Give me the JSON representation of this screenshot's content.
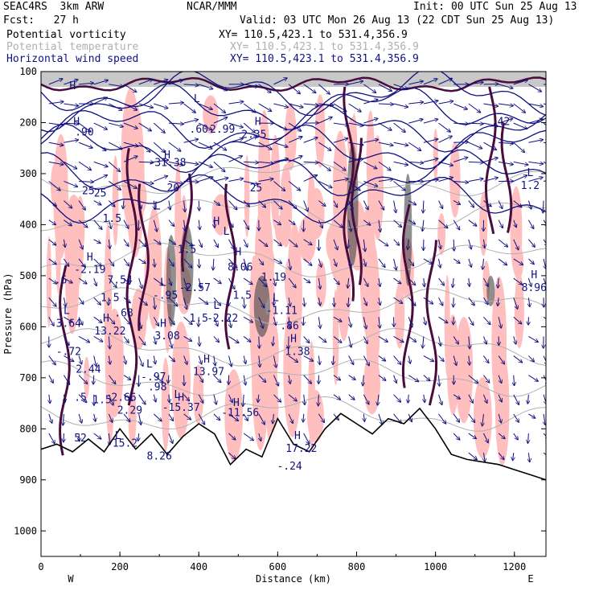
{
  "header": {
    "model": "SEAC4RS  3km ARW",
    "org": "NCAR/MMM",
    "init": "Init: 00 UTC Sun 25 Aug 13",
    "fcst": "Fcst:   27 h",
    "valid": "Valid: 03 UTC Mon 26 Aug 13 (22 CDT Sun 25 Aug 13)"
  },
  "legend": [
    {
      "name": "Potential vorticity",
      "xy": "XY= 110.5,423.1 to 531.4,356.9",
      "color": "#000000"
    },
    {
      "name": "Potential temperature",
      "xy": "XY= 110.5,423.1 to 531.4,356.9",
      "color": "#b0b0b0"
    },
    {
      "name": "Horizontal wind speed",
      "xy": "XY= 110.5,423.1 to 531.4,356.9",
      "color": "#101080"
    }
  ],
  "chart_data": {
    "type": "cross-section",
    "xlabel": "Distance (km)",
    "ylabel": "Pressure (hPa)",
    "xlim": [
      0,
      1280
    ],
    "ylim": [
      1050,
      100
    ],
    "xticks": [
      "0",
      "200",
      "400",
      "600",
      "800",
      "1000",
      "1200"
    ],
    "yticks": [
      "100",
      "200",
      "300",
      "400",
      "500",
      "600",
      "700",
      "800",
      "900",
      "1000"
    ],
    "left_end": "W",
    "right_end": "E",
    "colors": {
      "pv_light": "#ffbfbf",
      "pv_dark": "#4a0c3c",
      "wind": "#101080",
      "theta": "#b0b0b0",
      "terrain": "#000000"
    },
    "terrain": {
      "x": [
        0,
        40,
        80,
        120,
        160,
        200,
        240,
        280,
        320,
        360,
        400,
        440,
        480,
        520,
        560,
        600,
        640,
        680,
        720,
        760,
        800,
        840,
        880,
        920,
        960,
        1000,
        1040,
        1080,
        1120,
        1160,
        1200,
        1240,
        1280
      ],
      "p": [
        840,
        830,
        845,
        820,
        845,
        800,
        840,
        810,
        850,
        815,
        790,
        810,
        870,
        840,
        855,
        780,
        830,
        845,
        800,
        770,
        790,
        810,
        780,
        790,
        760,
        800,
        850,
        860,
        865,
        870,
        880,
        890,
        900
      ]
    },
    "labels": [
      {
        "t": "H",
        "x": 80,
        "p": 135,
        "c": "wind"
      },
      {
        "t": "H",
        "x": 90,
        "p": 205,
        "c": "wind"
      },
      {
        "t": "L",
        "x": 395,
        "p": 160,
        "c": "wind"
      },
      {
        "t": "H",
        "x": 550,
        "p": 205,
        "c": "wind"
      },
      {
        "t": "H",
        "x": 320,
        "p": 270,
        "c": "wind"
      },
      {
        "t": "25",
        "x": 150,
        "p": 345,
        "c": "wind"
      },
      {
        "t": "25",
        "x": 545,
        "p": 335,
        "c": "wind"
      },
      {
        "t": ".42",
        "x": 1165,
        "p": 205,
        "c": "wind"
      },
      {
        "t": "L",
        "x": 1240,
        "p": 305,
        "c": "wind"
      },
      {
        "t": "1.2",
        "x": 1240,
        "p": 330,
        "c": "wind"
      },
      {
        "t": ".90",
        "x": 110,
        "p": 225,
        "c": "wind"
      },
      {
        "t": "2.35",
        "x": 540,
        "p": 230,
        "c": "wind"
      },
      {
        "t": ".60",
        "x": 400,
        "p": 220,
        "c": "wind"
      },
      {
        "t": "2.99",
        "x": 460,
        "p": 220,
        "c": "wind"
      },
      {
        "t": "-31.38",
        "x": 320,
        "p": 285,
        "c": "wind"
      },
      {
        "t": "25",
        "x": 120,
        "p": 340,
        "c": "wind"
      },
      {
        "t": "20",
        "x": 335,
        "p": 335,
        "c": "wind"
      },
      {
        "t": "H",
        "x": 445,
        "p": 400,
        "c": "wind"
      },
      {
        "t": "H",
        "x": 1250,
        "p": 505,
        "c": "wind"
      },
      {
        "t": "8.96",
        "x": 1250,
        "p": 530,
        "c": "wind"
      },
      {
        "t": "H",
        "x": 124,
        "p": 470,
        "c": "wind"
      },
      {
        "t": "-2.19",
        "x": 124,
        "p": 495,
        "c": "wind"
      },
      {
        "t": "1.5",
        "x": 180,
        "p": 395,
        "c": "wind"
      },
      {
        "t": "L",
        "x": 295,
        "p": 370,
        "c": "wind"
      },
      {
        "t": "L",
        "x": 470,
        "p": 420,
        "c": "wind"
      },
      {
        "t": "1.5",
        "x": 370,
        "p": 455,
        "c": "wind"
      },
      {
        "t": "H",
        "x": 500,
        "p": 460,
        "c": "wind"
      },
      {
        "t": "8.06",
        "x": 505,
        "p": 490,
        "c": "wind"
      },
      {
        "t": "1.19",
        "x": 590,
        "p": 510,
        "c": "wind"
      },
      {
        "t": ".6",
        "x": 50,
        "p": 515,
        "c": "wind"
      },
      {
        "t": "7.54",
        "x": 200,
        "p": 515,
        "c": "wind"
      },
      {
        "t": "L",
        "x": 310,
        "p": 520,
        "c": "wind"
      },
      {
        "t": "-2.57",
        "x": 390,
        "p": 530,
        "c": "wind"
      },
      {
        "t": "L",
        "x": 595,
        "p": 550,
        "c": "wind"
      },
      {
        "t": "-1.11",
        "x": 610,
        "p": 575,
        "c": "wind"
      },
      {
        "t": "-.95",
        "x": 315,
        "p": 545,
        "c": "wind"
      },
      {
        "t": "1.5",
        "x": 510,
        "p": 545,
        "c": "wind"
      },
      {
        "t": "L",
        "x": 65,
        "p": 575,
        "c": "wind"
      },
      {
        "t": "3.64",
        "x": 70,
        "p": 600,
        "c": "wind"
      },
      {
        "t": "1.5",
        "x": 175,
        "p": 550,
        "c": "wind"
      },
      {
        "t": ".68",
        "x": 210,
        "p": 580,
        "c": "wind"
      },
      {
        "t": "H",
        "x": 165,
        "p": 590,
        "c": "wind"
      },
      {
        "t": "13.22",
        "x": 175,
        "p": 615,
        "c": "wind"
      },
      {
        "t": "H",
        "x": 310,
        "p": 600,
        "c": "wind"
      },
      {
        "t": "3.08",
        "x": 320,
        "p": 625,
        "c": "wind"
      },
      {
        "t": "1.5",
        "x": 400,
        "p": 590,
        "c": "wind"
      },
      {
        "t": "L",
        "x": 445,
        "p": 565,
        "c": "wind"
      },
      {
        "t": "-2.22",
        "x": 460,
        "p": 590,
        "c": "wind"
      },
      {
        "t": ".86",
        "x": 630,
        "p": 605,
        "c": "wind"
      },
      {
        "t": "H",
        "x": 640,
        "p": 630,
        "c": "wind"
      },
      {
        "t": "1.38",
        "x": 650,
        "p": 655,
        "c": "wind"
      },
      {
        "t": "-.72",
        "x": 70,
        "p": 655,
        "c": "wind"
      },
      {
        "t": "2.44",
        "x": 120,
        "p": 690,
        "c": "wind"
      },
      {
        "t": "H",
        "x": 420,
        "p": 670,
        "c": "wind"
      },
      {
        "t": "13.97",
        "x": 425,
        "p": 695,
        "c": "wind"
      },
      {
        "t": "L",
        "x": 275,
        "p": 680,
        "c": "wind"
      },
      {
        "t": "-.97",
        "x": 285,
        "p": 705,
        "c": "wind"
      },
      {
        "t": ".98",
        "x": 295,
        "p": 725,
        "c": "wind"
      },
      {
        "t": ".5",
        "x": 100,
        "p": 745,
        "c": "wind"
      },
      {
        "t": "1.5",
        "x": 155,
        "p": 750,
        "c": "wind"
      },
      {
        "t": "2.66",
        "x": 210,
        "p": 745,
        "c": "wind"
      },
      {
        "t": "2.29",
        "x": 225,
        "p": 770,
        "c": "wind"
      },
      {
        "t": "L",
        "x": 345,
        "p": 740,
        "c": "wind"
      },
      {
        "t": "H",
        "x": 355,
        "p": 745,
        "c": "wind"
      },
      {
        "t": "-15.37",
        "x": 355,
        "p": 765,
        "c": "wind"
      },
      {
        "t": "H",
        "x": 495,
        "p": 755,
        "c": "wind"
      },
      {
        "t": "-11.56",
        "x": 505,
        "p": 775,
        "c": "wind"
      },
      {
        "t": "52",
        "x": 100,
        "p": 825,
        "c": "wind"
      },
      {
        "t": "L",
        "x": 195,
        "p": 820,
        "c": "wind"
      },
      {
        "t": "-15.2",
        "x": 205,
        "p": 835,
        "c": "wind"
      },
      {
        "t": "8.26",
        "x": 300,
        "p": 860,
        "c": "wind"
      },
      {
        "t": "H",
        "x": 650,
        "p": 820,
        "c": "wind"
      },
      {
        "t": "17.22",
        "x": 660,
        "p": 845,
        "c": "wind"
      },
      {
        "t": "-.24",
        "x": 630,
        "p": 880,
        "c": "wind"
      }
    ]
  }
}
